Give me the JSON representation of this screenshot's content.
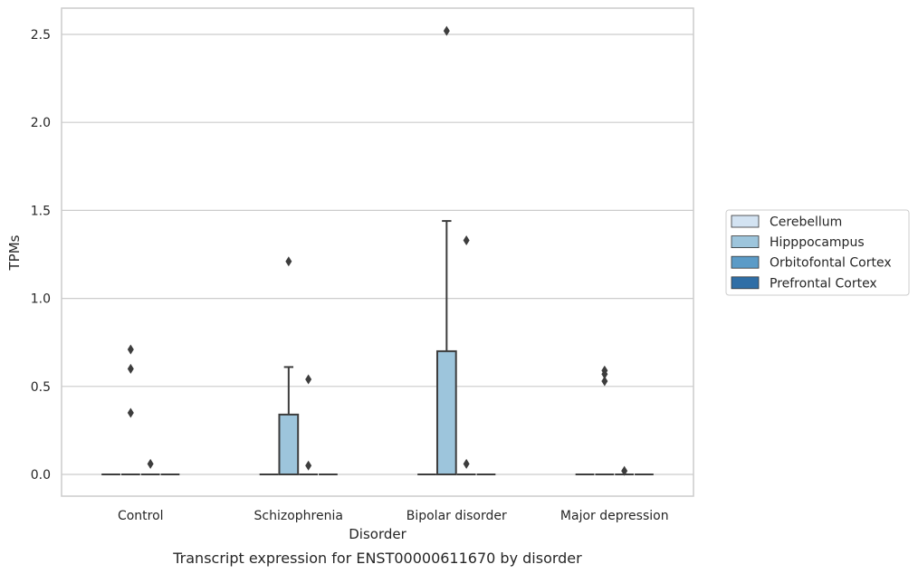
{
  "chart_data": {
    "type": "box",
    "caption": "Transcript expression for ENST00000611670 by disorder",
    "xlabel": "Disorder",
    "ylabel": "TPMs",
    "ylim": [
      -0.12,
      2.65
    ],
    "yticks": [
      0.0,
      0.5,
      1.0,
      1.5,
      2.0,
      2.5
    ],
    "ytick_labels": [
      "0.0",
      "0.5",
      "1.0",
      "1.5",
      "2.0",
      "2.5"
    ],
    "grid": "horizontal",
    "categories": [
      "Control",
      "Schizophrenia",
      "Bipolar disorder",
      "Major depression"
    ],
    "legend": {
      "position": "right",
      "entries": [
        {
          "name": "Cerebellum",
          "color": "#d3e3f2"
        },
        {
          "name": "Hipppocampus",
          "color": "#9dc5dc"
        },
        {
          "name": "Orbitofontal Cortex",
          "color": "#5b9bc7"
        },
        {
          "name": "Prefrontal Cortex",
          "color": "#2f6ea6"
        }
      ]
    },
    "series": [
      {
        "name": "Cerebellum",
        "boxes": [
          {
            "category": "Control",
            "q1": 0,
            "median": 0,
            "q3": 0,
            "whisker_low": 0,
            "whisker_high": 0,
            "outliers": []
          },
          {
            "category": "Schizophrenia",
            "q1": 0,
            "median": 0,
            "q3": 0,
            "whisker_low": 0,
            "whisker_high": 0,
            "outliers": []
          },
          {
            "category": "Bipolar disorder",
            "q1": 0,
            "median": 0,
            "q3": 0,
            "whisker_low": 0,
            "whisker_high": 0,
            "outliers": []
          },
          {
            "category": "Major depression",
            "q1": 0,
            "median": 0,
            "q3": 0,
            "whisker_low": 0,
            "whisker_high": 0,
            "outliers": []
          }
        ]
      },
      {
        "name": "Hipppocampus",
        "boxes": [
          {
            "category": "Control",
            "q1": 0,
            "median": 0,
            "q3": 0,
            "whisker_low": 0,
            "whisker_high": 0,
            "outliers": [
              0.71,
              0.6,
              0.35
            ]
          },
          {
            "category": "Schizophrenia",
            "q1": 0,
            "median": 0,
            "q3": 0.34,
            "whisker_low": 0,
            "whisker_high": 0.61,
            "outliers": [
              1.21
            ]
          },
          {
            "category": "Bipolar disorder",
            "q1": 0,
            "median": 0,
            "q3": 0.7,
            "whisker_low": 0,
            "whisker_high": 1.44,
            "outliers": [
              2.52
            ]
          },
          {
            "category": "Major depression",
            "q1": 0,
            "median": 0,
            "q3": 0,
            "whisker_low": 0,
            "whisker_high": 0,
            "outliers": [
              0.59,
              0.57,
              0.53
            ]
          }
        ]
      },
      {
        "name": "Orbitofontal Cortex",
        "boxes": [
          {
            "category": "Control",
            "q1": 0,
            "median": 0,
            "q3": 0,
            "whisker_low": 0,
            "whisker_high": 0,
            "outliers": [
              0.06
            ]
          },
          {
            "category": "Schizophrenia",
            "q1": 0,
            "median": 0,
            "q3": 0,
            "whisker_low": 0,
            "whisker_high": 0,
            "outliers": [
              0.54,
              0.05
            ]
          },
          {
            "category": "Bipolar disorder",
            "q1": 0,
            "median": 0,
            "q3": 0,
            "whisker_low": 0,
            "whisker_high": 0,
            "outliers": [
              1.33,
              0.06
            ]
          },
          {
            "category": "Major depression",
            "q1": 0,
            "median": 0,
            "q3": 0,
            "whisker_low": 0,
            "whisker_high": 0,
            "outliers": [
              0.02
            ]
          }
        ]
      },
      {
        "name": "Prefrontal Cortex",
        "boxes": [
          {
            "category": "Control",
            "q1": 0,
            "median": 0,
            "q3": 0,
            "whisker_low": 0,
            "whisker_high": 0,
            "outliers": []
          },
          {
            "category": "Schizophrenia",
            "q1": 0,
            "median": 0,
            "q3": 0,
            "whisker_low": 0,
            "whisker_high": 0,
            "outliers": []
          },
          {
            "category": "Bipolar disorder",
            "q1": 0,
            "median": 0,
            "q3": 0,
            "whisker_low": 0,
            "whisker_high": 0,
            "outliers": []
          },
          {
            "category": "Major depression",
            "q1": 0,
            "median": 0,
            "q3": 0,
            "whisker_low": 0,
            "whisker_high": 0,
            "outliers": []
          }
        ]
      }
    ]
  }
}
